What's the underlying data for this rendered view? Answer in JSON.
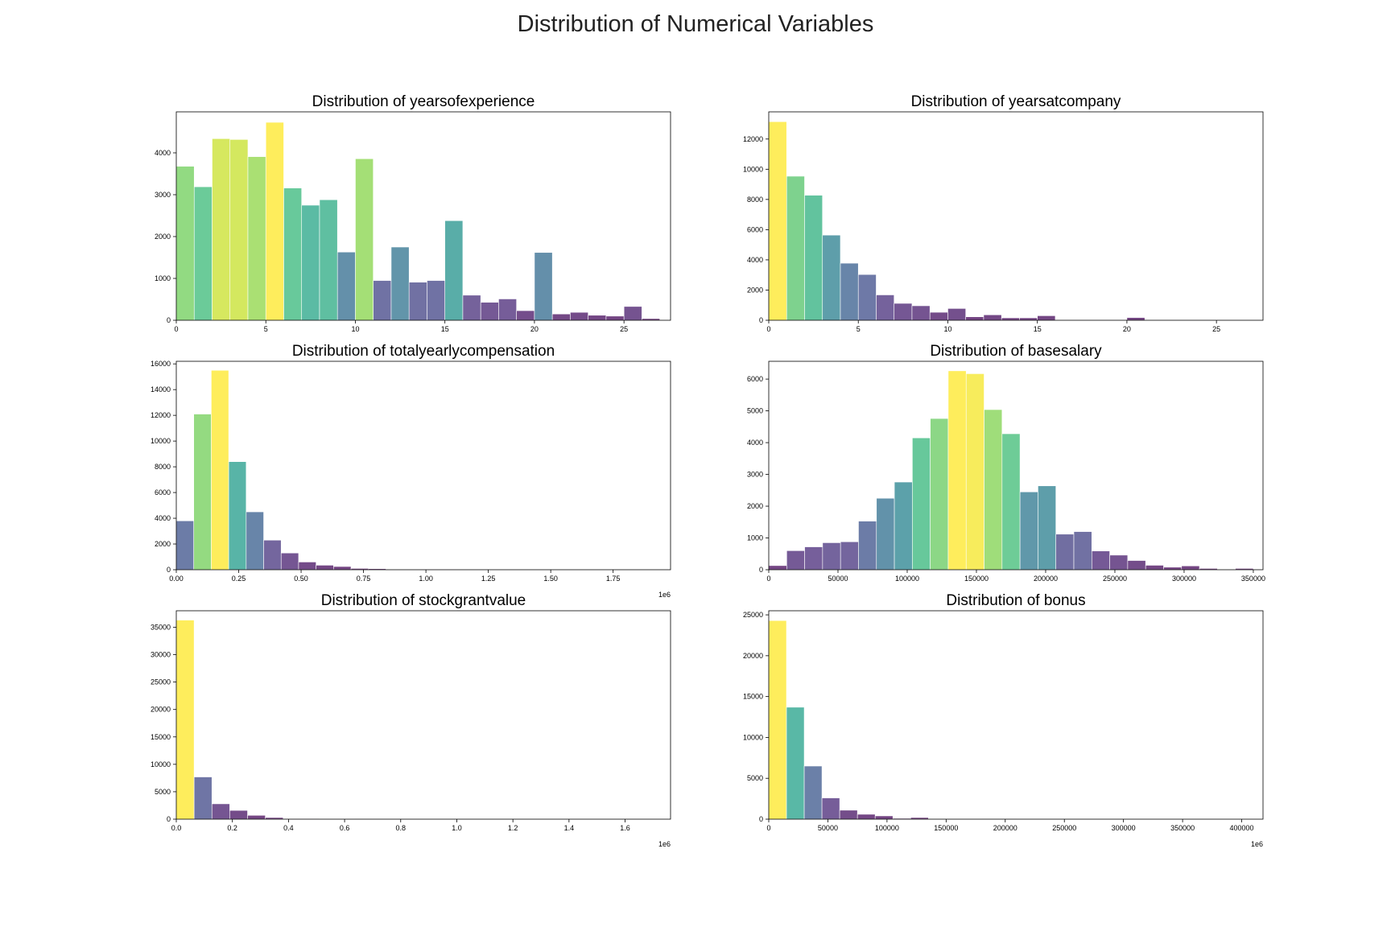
{
  "figure": {
    "title": "Distribution of Numerical Variables"
  },
  "chart_data": [
    {
      "type": "bar",
      "title": "Distribution of yearsofexperience",
      "bin_edges": [
        0,
        1,
        2,
        3,
        4,
        5,
        6,
        7,
        8,
        9,
        10,
        11,
        12,
        13,
        14,
        15,
        16,
        17,
        18,
        19,
        20,
        21,
        22,
        23,
        24,
        25,
        26,
        27
      ],
      "values": [
        3680,
        3190,
        4340,
        4320,
        3910,
        4730,
        3160,
        2750,
        2880,
        1630,
        3860,
        950,
        1750,
        910,
        950,
        2380,
        600,
        430,
        510,
        230,
        1620,
        150,
        190,
        120,
        100,
        330,
        40
      ],
      "xlim": [
        0,
        27.6
      ],
      "ylim": [
        0,
        4980
      ],
      "xticks": [
        0,
        5,
        10,
        15,
        20,
        25
      ],
      "xtick_labels": [
        "0",
        "5",
        "10",
        "15",
        "20",
        "25"
      ],
      "yticks": [
        0,
        1000,
        2000,
        3000,
        4000
      ],
      "ytick_labels": [
        "0",
        "1000",
        "2000",
        "3000",
        "4000"
      ],
      "xscale_label": ""
    },
    {
      "type": "bar",
      "title": "Distribution of yearsatcompany",
      "bin_edges": [
        0,
        1,
        2,
        3,
        4,
        5,
        6,
        7,
        8,
        9,
        10,
        11,
        12,
        13,
        14,
        15,
        16,
        17,
        18,
        19,
        20,
        21,
        22,
        23,
        24,
        25,
        26,
        27
      ],
      "values": [
        13150,
        9540,
        8280,
        5640,
        3780,
        3030,
        1680,
        1120,
        960,
        530,
        780,
        230,
        360,
        160,
        160,
        300,
        20,
        20,
        10,
        10,
        180,
        10,
        0,
        0,
        0,
        0,
        0
      ],
      "xlim": [
        0,
        27.6
      ],
      "ylim": [
        0,
        13800
      ],
      "xticks": [
        0,
        5,
        10,
        15,
        20,
        25
      ],
      "xtick_labels": [
        "0",
        "5",
        "10",
        "15",
        "20",
        "25"
      ],
      "yticks": [
        0,
        2000,
        4000,
        6000,
        8000,
        10000,
        12000
      ],
      "ytick_labels": [
        "0",
        "2000",
        "4000",
        "6000",
        "8000",
        "10000",
        "12000"
      ],
      "xscale_label": ""
    },
    {
      "type": "bar",
      "title": "Distribution of totalyearlycompensation",
      "bin_edges": [
        0.0,
        0.07,
        0.14,
        0.21,
        0.28,
        0.35,
        0.42,
        0.49,
        0.56,
        0.63,
        0.7,
        0.77,
        0.84,
        0.91,
        0.98,
        1.05,
        1.12,
        1.19,
        1.26,
        1.33,
        1.4,
        1.47,
        1.54,
        1.61,
        1.68,
        1.75,
        1.82,
        1.89
      ],
      "values": [
        3800,
        12100,
        15500,
        8400,
        4500,
        2300,
        1300,
        600,
        350,
        250,
        100,
        80,
        20,
        20,
        10,
        10,
        0,
        0,
        0,
        0,
        0,
        0,
        0,
        0,
        0,
        0,
        0
      ],
      "xlim": [
        0,
        1.98
      ],
      "ylim": [
        0,
        16200
      ],
      "xticks": [
        0,
        0.25,
        0.5,
        0.75,
        1.0,
        1.25,
        1.5,
        1.75
      ],
      "xtick_labels": [
        "0.00",
        "0.25",
        "0.50",
        "0.75",
        "1.00",
        "1.25",
        "1.50",
        "1.75"
      ],
      "yticks": [
        0,
        2000,
        4000,
        6000,
        8000,
        10000,
        12000,
        14000,
        16000
      ],
      "ytick_labels": [
        "0",
        "2000",
        "4000",
        "6000",
        "8000",
        "10000",
        "12000",
        "14000",
        "16000"
      ],
      "xscale_label": "1e6"
    },
    {
      "type": "bar",
      "title": "Distribution of basesalary",
      "bin_edges": [
        0,
        12963,
        25926,
        38889,
        51852,
        64815,
        77778,
        90741,
        103704,
        116667,
        129630,
        142593,
        155556,
        168519,
        181481,
        194444,
        207407,
        220370,
        233333,
        246296,
        259259,
        272222,
        285185,
        298148,
        311111,
        324074,
        337037,
        350000
      ],
      "values": [
        130,
        600,
        720,
        850,
        880,
        1530,
        2250,
        2760,
        4150,
        4760,
        6260,
        6170,
        5040,
        4280,
        2450,
        2640,
        1120,
        1200,
        590,
        460,
        290,
        140,
        80,
        120,
        40,
        10,
        40
      ],
      "xlim": [
        0,
        357000
      ],
      "ylim": [
        0,
        6560
      ],
      "xticks": [
        0,
        50000,
        100000,
        150000,
        200000,
        250000,
        300000,
        350000
      ],
      "xtick_labels": [
        "0",
        "50000",
        "100000",
        "150000",
        "200000",
        "250000",
        "300000",
        "350000"
      ],
      "yticks": [
        0,
        1000,
        2000,
        3000,
        4000,
        5000,
        6000
      ],
      "ytick_labels": [
        "0",
        "1000",
        "2000",
        "3000",
        "4000",
        "5000",
        "6000"
      ],
      "xscale_label": ""
    },
    {
      "type": "bar",
      "title": "Distribution of stockgrantvalue",
      "bin_edges": [
        0.0,
        0.0635,
        0.127,
        0.1905,
        0.254,
        0.3175,
        0.381,
        0.4445,
        0.508,
        0.5715,
        0.635,
        0.6985,
        0.762,
        0.8255,
        0.889,
        0.9525,
        1.016,
        1.0795,
        1.143,
        1.2065,
        1.27,
        1.3335,
        1.397,
        1.4605,
        1.524,
        1.5875,
        1.651,
        1.7145
      ],
      "values": [
        36300,
        7700,
        2800,
        1600,
        700,
        300,
        100,
        80,
        50,
        30,
        20,
        10,
        0,
        0,
        0,
        0,
        0,
        0,
        0,
        0,
        0,
        0,
        0,
        0,
        0,
        0,
        0
      ],
      "xlim": [
        0,
        1.762
      ],
      "ylim": [
        0,
        38000
      ],
      "xticks": [
        0,
        0.2,
        0.4,
        0.6,
        0.8,
        1.0,
        1.2,
        1.4,
        1.6
      ],
      "xtick_labels": [
        "0.0",
        "0.2",
        "0.4",
        "0.6",
        "0.8",
        "1.0",
        "1.2",
        "1.4",
        "1.6"
      ],
      "yticks": [
        0,
        5000,
        10000,
        15000,
        20000,
        25000,
        30000,
        35000
      ],
      "ytick_labels": [
        "0",
        "5000",
        "10000",
        "15000",
        "20000",
        "25000",
        "30000",
        "35000"
      ],
      "xscale_label": "1e6"
    },
    {
      "type": "bar",
      "title": "Distribution of bonus",
      "bin_edges": [
        0,
        15000,
        30000,
        45000,
        60000,
        75000,
        90000,
        105000,
        120000,
        135000,
        150000,
        165000,
        180000,
        195000,
        210000,
        225000,
        240000,
        255000,
        270000,
        285000,
        300000,
        315000,
        330000,
        345000,
        360000,
        375000,
        390000,
        405000
      ],
      "values": [
        24300,
        13700,
        6500,
        2600,
        1100,
        600,
        400,
        100,
        200,
        50,
        30,
        20,
        10,
        10,
        0,
        0,
        0,
        0,
        0,
        0,
        0,
        0,
        0,
        0,
        0,
        0,
        0
      ],
      "xlim": [
        0,
        418000
      ],
      "ylim": [
        0,
        25500
      ],
      "xticks": [
        0,
        50000,
        100000,
        150000,
        200000,
        250000,
        300000,
        350000,
        400000
      ],
      "xtick_labels": [
        "0",
        "50000",
        "100000",
        "150000",
        "200000",
        "250000",
        "300000",
        "350000",
        "400000"
      ],
      "yticks": [
        0,
        5000,
        10000,
        15000,
        20000,
        25000
      ],
      "ytick_labels": [
        "0",
        "5000",
        "10000",
        "15000",
        "20000",
        "25000"
      ],
      "xscale_label": "1e6"
    }
  ]
}
